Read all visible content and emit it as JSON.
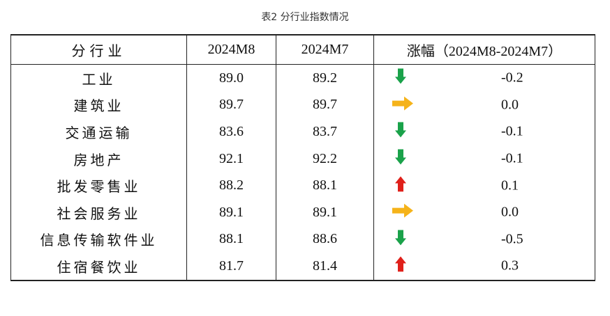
{
  "caption": "表2 分行业指数情况",
  "table": {
    "headers": [
      "分行业",
      "2024M8",
      "2024M7",
      "涨幅（2024M8-2024M7）"
    ],
    "rows": [
      {
        "sector": "工业",
        "m8": "89.0",
        "m7": "89.2",
        "trend": "down",
        "change": "-0.2"
      },
      {
        "sector": "建筑业",
        "m8": "89.7",
        "m7": "89.7",
        "trend": "flat",
        "change": "0.0"
      },
      {
        "sector": "交通运输",
        "m8": "83.6",
        "m7": "83.7",
        "trend": "down",
        "change": "-0.1"
      },
      {
        "sector": "房地产",
        "m8": "92.1",
        "m7": "92.2",
        "trend": "down",
        "change": "-0.1"
      },
      {
        "sector": "批发零售业",
        "m8": "88.2",
        "m7": "88.1",
        "trend": "up",
        "change": "0.1"
      },
      {
        "sector": "社会服务业",
        "m8": "89.1",
        "m7": "89.1",
        "trend": "flat",
        "change": "0.0"
      },
      {
        "sector": "信息传输软件业",
        "m8": "88.1",
        "m7": "88.6",
        "trend": "down",
        "change": "-0.5"
      },
      {
        "sector": "住宿餐饮业",
        "m8": "81.7",
        "m7": "81.4",
        "trend": "up",
        "change": "0.3"
      }
    ]
  },
  "colors": {
    "down": "#1aa24a",
    "up": "#e0201a",
    "flat": "#f5b31a"
  },
  "icons": {
    "down": "arrow-down-icon",
    "up": "arrow-up-icon",
    "flat": "arrow-right-icon"
  }
}
